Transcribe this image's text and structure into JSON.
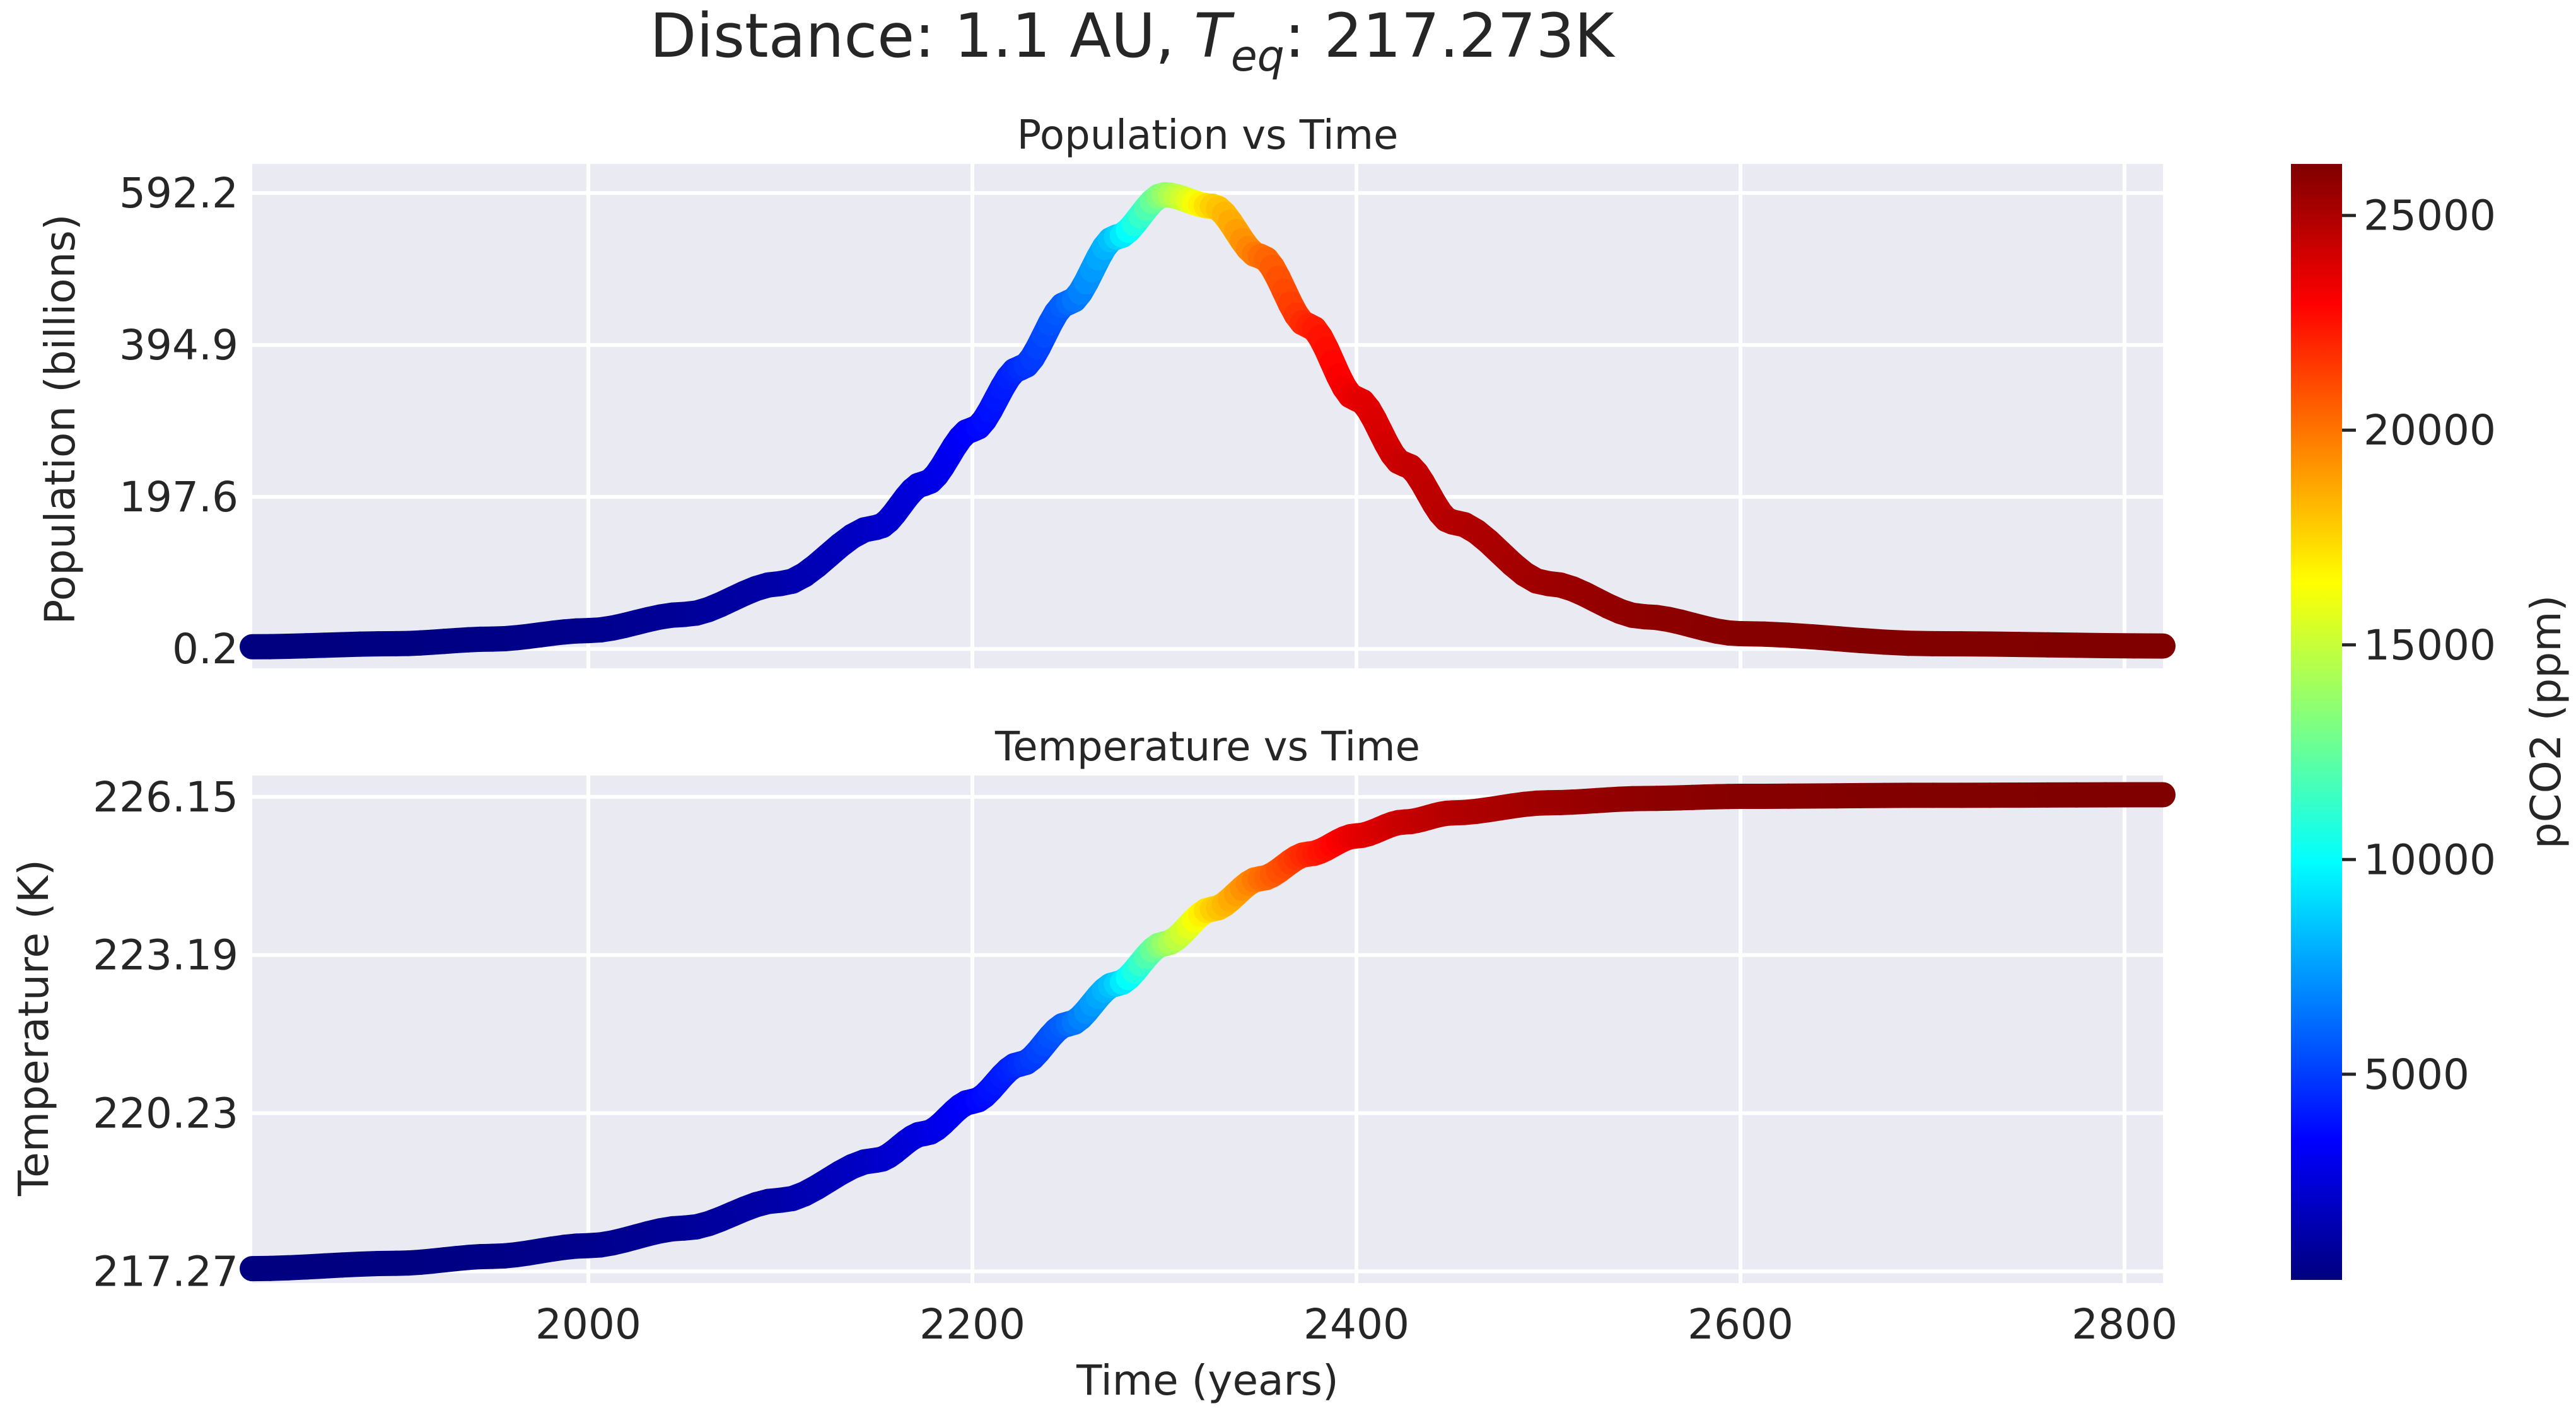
{
  "figure_title": {
    "prefix": "Distance: 1.1 AU,   ",
    "teq_symbol": "T",
    "teq_subscript": "eq",
    "suffix": ": 217.273K"
  },
  "colormap": "jet",
  "colors": {
    "plot_background": "#eaeaf2",
    "grid": "#ffffff",
    "text": "#262626"
  },
  "chart_data": [
    {
      "type": "line",
      "title": "Population vs Time",
      "xlabel": "",
      "ylabel": "Population (billions)",
      "xlim": [
        1825,
        2820
      ],
      "ylim": [
        -25,
        630
      ],
      "x_ticks": [
        2000,
        2200,
        2400,
        2600,
        2800
      ],
      "x_tick_labels": [],
      "y_ticks": [
        0.2,
        197.6,
        394.9,
        592.2
      ],
      "y_tick_labels": [
        "0.2",
        "197.6",
        "394.9",
        "592.2"
      ],
      "grid": true,
      "colored_by": "pCO2 (ppm)",
      "x": [
        1825,
        1900,
        1950,
        2000,
        2050,
        2100,
        2150,
        2175,
        2200,
        2225,
        2250,
        2275,
        2300,
        2325,
        2350,
        2375,
        2400,
        2425,
        2450,
        2500,
        2550,
        2600,
        2700,
        2820
      ],
      "y": [
        3,
        7,
        13,
        24,
        45,
        85,
        158,
        215,
        285,
        365,
        450,
        535,
        590,
        575,
        510,
        420,
        325,
        240,
        165,
        85,
        42,
        20,
        7,
        4
      ],
      "pco2": [
        210,
        280,
        380,
        540,
        800,
        1250,
        2000,
        2600,
        3400,
        4500,
        6000,
        8500,
        13500,
        17500,
        20000,
        22000,
        23500,
        24300,
        24800,
        25400,
        25800,
        26000,
        26150,
        26200
      ]
    },
    {
      "type": "line",
      "title": "Temperature vs Time",
      "xlabel": "Time (years)",
      "ylabel": "Temperature (K)",
      "xlim": [
        1825,
        2820
      ],
      "ylim": [
        217.05,
        226.55
      ],
      "x_ticks": [
        2000,
        2200,
        2400,
        2600,
        2800
      ],
      "x_tick_labels": [
        "2000",
        "2200",
        "2400",
        "2600",
        "2800"
      ],
      "y_ticks": [
        217.27,
        220.23,
        223.19,
        226.15
      ],
      "y_tick_labels": [
        "217.27",
        "220.23",
        "223.19",
        "226.15"
      ],
      "grid": true,
      "colored_by": "pCO2 (ppm)",
      "x": [
        1825,
        1900,
        1950,
        2000,
        2050,
        2100,
        2150,
        2175,
        2200,
        2225,
        2250,
        2275,
        2300,
        2325,
        2350,
        2375,
        2400,
        2425,
        2450,
        2500,
        2550,
        2600,
        2700,
        2820
      ],
      "y": [
        217.32,
        217.42,
        217.55,
        217.75,
        218.08,
        218.6,
        219.35,
        219.85,
        220.45,
        221.15,
        221.9,
        222.65,
        223.4,
        224.05,
        224.62,
        225.08,
        225.42,
        225.68,
        225.85,
        226.04,
        226.12,
        226.16,
        226.18,
        226.19
      ],
      "pco2": [
        210,
        280,
        380,
        540,
        800,
        1250,
        2000,
        2600,
        3400,
        4500,
        6000,
        8500,
        13500,
        17500,
        20000,
        22000,
        23500,
        24300,
        24800,
        25400,
        25800,
        26000,
        26150,
        26200
      ]
    }
  ],
  "colorbar": {
    "label": "pCO2 (ppm)",
    "range": [
      210,
      26200
    ],
    "ticks": [
      5000,
      10000,
      15000,
      20000,
      25000
    ],
    "tick_labels": [
      "5000",
      "10000",
      "15000",
      "20000",
      "25000"
    ]
  }
}
